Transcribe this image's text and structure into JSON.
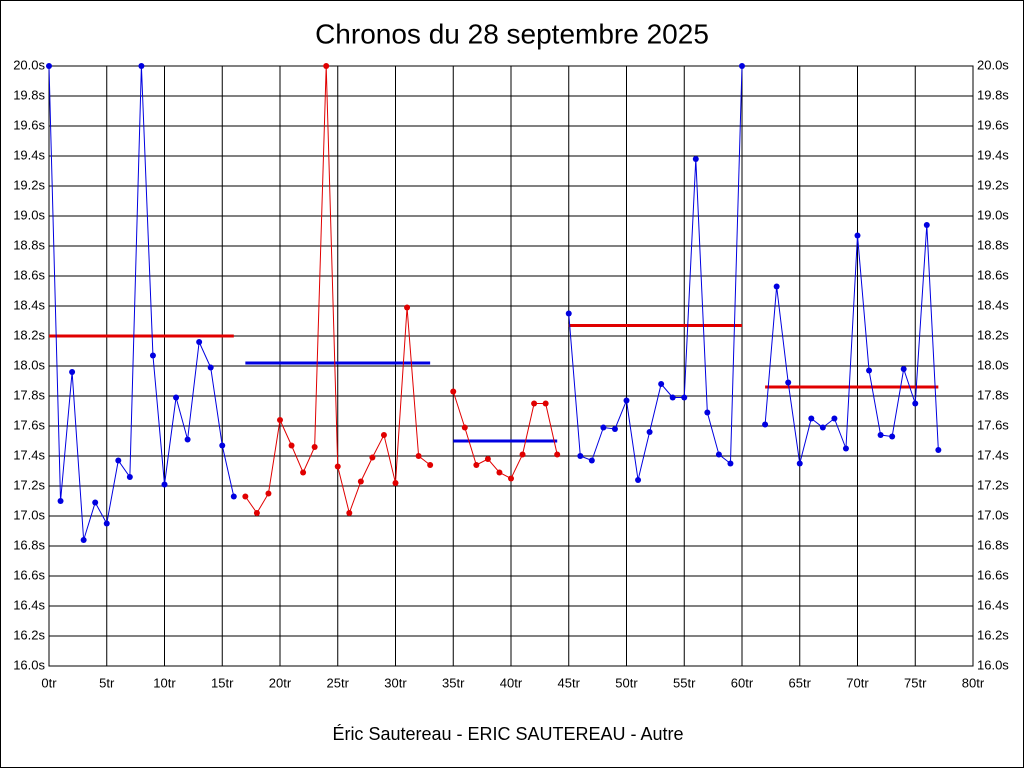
{
  "chart_data": {
    "type": "line",
    "title": "Chronos du 28 septembre 2025",
    "x_label": "Éric Sautereau - ERIC SAUTEREAU - Autre",
    "xlim": [
      0,
      80
    ],
    "ylim": [
      16,
      20
    ],
    "xticks": [
      {
        "value": 0,
        "label": "0tr"
      },
      {
        "value": 5,
        "label": "5tr"
      },
      {
        "value": 10,
        "label": "10tr"
      },
      {
        "value": 15,
        "label": "15tr"
      },
      {
        "value": 20,
        "label": "20tr"
      },
      {
        "value": 25,
        "label": "25tr"
      },
      {
        "value": 30,
        "label": "30tr"
      },
      {
        "value": 35,
        "label": "35tr"
      },
      {
        "value": 40,
        "label": "40tr"
      },
      {
        "value": 45,
        "label": "45tr"
      },
      {
        "value": 50,
        "label": "50tr"
      },
      {
        "value": 55,
        "label": "55tr"
      },
      {
        "value": 60,
        "label": "60tr"
      },
      {
        "value": 65,
        "label": "65tr"
      },
      {
        "value": 70,
        "label": "70tr"
      },
      {
        "value": 75,
        "label": "75tr"
      },
      {
        "value": 80,
        "label": "80tr"
      }
    ],
    "yticks": [
      {
        "value": 16.0,
        "label": "16.0s"
      },
      {
        "value": 16.2,
        "label": "16.2s"
      },
      {
        "value": 16.4,
        "label": "16.4s"
      },
      {
        "value": 16.6,
        "label": "16.6s"
      },
      {
        "value": 16.8,
        "label": "16.8s"
      },
      {
        "value": 17.0,
        "label": "17.0s"
      },
      {
        "value": 17.2,
        "label": "17.2s"
      },
      {
        "value": 17.4,
        "label": "17.4s"
      },
      {
        "value": 17.6,
        "label": "17.6s"
      },
      {
        "value": 17.8,
        "label": "17.8s"
      },
      {
        "value": 18.0,
        "label": "18.0s"
      },
      {
        "value": 18.2,
        "label": "18.2s"
      },
      {
        "value": 18.4,
        "label": "18.4s"
      },
      {
        "value": 18.6,
        "label": "18.6s"
      },
      {
        "value": 18.8,
        "label": "18.8s"
      },
      {
        "value": 19.0,
        "label": "19.0s"
      },
      {
        "value": 19.2,
        "label": "19.2s"
      },
      {
        "value": 19.4,
        "label": "19.4s"
      },
      {
        "value": 19.6,
        "label": "19.6s"
      },
      {
        "value": 19.8,
        "label": "19.8s"
      },
      {
        "value": 20.0,
        "label": "20.0s"
      }
    ],
    "grid": true,
    "series": [
      {
        "color": "#0000e0",
        "mean": 18.2,
        "mean_color": "#e00000",
        "x": [
          0,
          1,
          2,
          3,
          4,
          5,
          6,
          7,
          8,
          9,
          10,
          11,
          12,
          13,
          14,
          15,
          16
        ],
        "values": [
          20.0,
          17.1,
          17.96,
          16.84,
          17.09,
          16.95,
          17.37,
          17.26,
          20.0,
          18.07,
          17.21,
          17.79,
          17.51,
          18.16,
          17.99,
          17.47,
          17.13
        ]
      },
      {
        "color": "#e00000",
        "mean": 18.02,
        "mean_color": "#0000e0",
        "x": [
          17,
          18,
          19,
          20,
          21,
          22,
          23,
          24,
          25,
          26,
          27,
          28,
          29,
          30,
          31,
          32,
          33
        ],
        "values": [
          17.13,
          17.02,
          17.15,
          17.64,
          17.47,
          17.29,
          17.46,
          20.0,
          17.33,
          17.02,
          17.23,
          17.39,
          17.54,
          17.22,
          18.39,
          17.4,
          17.34
        ]
      },
      {
        "color": "#e00000",
        "mean": 17.5,
        "mean_color": "#0000e0",
        "x": [
          35,
          36,
          37,
          38,
          39,
          40,
          41,
          42,
          43,
          44
        ],
        "values": [
          17.83,
          17.59,
          17.34,
          17.38,
          17.29,
          17.25,
          17.41,
          17.75,
          17.75,
          17.41
        ]
      },
      {
        "color": "#0000e0",
        "mean": 18.27,
        "mean_color": "#e00000",
        "x": [
          45,
          46,
          47,
          48,
          49,
          50,
          51,
          52,
          53,
          54,
          55,
          56,
          57,
          58,
          59,
          60
        ],
        "values": [
          18.35,
          17.4,
          17.37,
          17.59,
          17.58,
          17.77,
          17.24,
          17.56,
          17.88,
          17.79,
          17.79,
          19.38,
          17.69,
          17.41,
          17.35,
          20.0
        ]
      },
      {
        "color": "#0000e0",
        "mean": 17.86,
        "mean_color": "#e00000",
        "x": [
          62,
          63,
          64,
          65,
          66,
          67,
          68,
          69,
          70,
          71,
          72,
          73,
          74,
          75,
          76,
          77
        ],
        "values": [
          17.61,
          18.53,
          17.89,
          17.35,
          17.65,
          17.59,
          17.65,
          17.45,
          18.87,
          17.97,
          17.54,
          17.53,
          17.98,
          17.75,
          18.94,
          17.44
        ]
      }
    ]
  }
}
